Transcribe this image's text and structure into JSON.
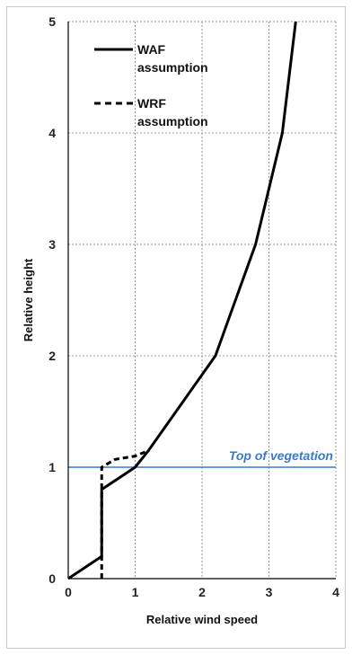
{
  "chart_data": {
    "type": "line",
    "xlabel": "Relative wind speed",
    "ylabel": "Relative height",
    "xlim": [
      0,
      4
    ],
    "ylim": [
      0,
      5
    ],
    "x_ticks": [
      "0",
      "1",
      "2",
      "3",
      "4"
    ],
    "y_ticks": [
      "0",
      "1",
      "2",
      "3",
      "4",
      "5"
    ],
    "grid": true,
    "legend_position": "top-left",
    "series": [
      {
        "name": "WAF assumption",
        "legend_lines": [
          "WAF",
          "assumption"
        ],
        "style": "solid",
        "color": "#000000",
        "points": [
          [
            0,
            0
          ],
          [
            0.5,
            0.2
          ],
          [
            0.5,
            0.8
          ],
          [
            1.0,
            1.0
          ],
          [
            1.2,
            1.15
          ],
          [
            2.2,
            2.0
          ],
          [
            2.8,
            3.0
          ],
          [
            3.2,
            4.0
          ],
          [
            3.4,
            5.0
          ]
        ]
      },
      {
        "name": "WRF assumption",
        "legend_lines": [
          "WRF",
          "assumption"
        ],
        "style": "dashed",
        "color": "#000000",
        "points": [
          [
            0.5,
            0.0
          ],
          [
            0.5,
            1.0
          ],
          [
            0.7,
            1.07
          ],
          [
            1.0,
            1.1
          ],
          [
            1.2,
            1.15
          ]
        ]
      }
    ],
    "reference_lines": [
      {
        "y": 1,
        "color": "#3a7bc8",
        "label": "Top of vegetation"
      }
    ]
  }
}
